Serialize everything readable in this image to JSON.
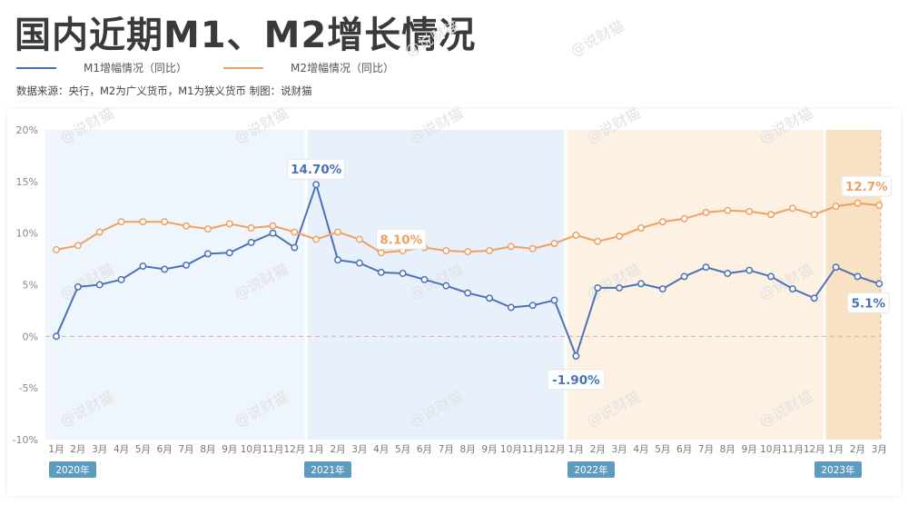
{
  "header": {
    "title": "国内近期M1、M2增长情况",
    "source": "数据来源：央行，M2为广义货币，M1为狭义货币    制图：说财猫"
  },
  "watermark": "@说财猫",
  "colors": {
    "m1": "#4a72b8",
    "m2": "#f0a060",
    "band_2020": "#eef5fd",
    "band_2021": "#e7f0fb",
    "band_2022": "#fdf1e3",
    "band_2023": "#f9e1c4",
    "zero_line": "#e0a8a8",
    "year_badge": "#5d9cc0"
  },
  "chart_data": {
    "type": "line",
    "x": [
      "1月",
      "2月",
      "3月",
      "4月",
      "5月",
      "6月",
      "7月",
      "8月",
      "9月",
      "10月",
      "11月",
      "12月",
      "1月",
      "2月",
      "3月",
      "4月",
      "5月",
      "6月",
      "7月",
      "8月",
      "9月",
      "10月",
      "11月",
      "12月",
      "1月",
      "2月",
      "3月",
      "4月",
      "5月",
      "6月",
      "7月",
      "8月",
      "9月",
      "10月",
      "11月",
      "12月",
      "1月",
      "2月",
      "3月"
    ],
    "years": [
      {
        "label": "2020年",
        "start": 0,
        "end": 11
      },
      {
        "label": "2021年",
        "start": 12,
        "end": 23
      },
      {
        "label": "2022年",
        "start": 24,
        "end": 35
      },
      {
        "label": "2023年",
        "start": 36,
        "end": 38
      }
    ],
    "series": [
      {
        "name": "M1增幅情况（同比）",
        "key": "m1",
        "values": [
          0.0,
          4.8,
          5.0,
          5.5,
          6.8,
          6.5,
          6.9,
          8.0,
          8.1,
          9.1,
          10.0,
          8.6,
          14.7,
          7.4,
          7.1,
          6.2,
          6.1,
          5.5,
          4.9,
          4.2,
          3.7,
          2.8,
          3.0,
          3.5,
          -1.9,
          4.7,
          4.7,
          5.1,
          4.6,
          5.8,
          6.7,
          6.1,
          6.4,
          5.8,
          4.6,
          3.7,
          6.7,
          5.8,
          5.1
        ]
      },
      {
        "name": "M2增幅情况（同比）",
        "key": "m2",
        "values": [
          8.4,
          8.8,
          10.1,
          11.1,
          11.1,
          11.1,
          10.7,
          10.4,
          10.9,
          10.5,
          10.7,
          10.1,
          9.4,
          10.1,
          9.4,
          8.1,
          8.3,
          8.6,
          8.3,
          8.2,
          8.3,
          8.7,
          8.5,
          9.0,
          9.8,
          9.2,
          9.7,
          10.5,
          11.1,
          11.4,
          12.0,
          12.2,
          12.1,
          11.8,
          12.4,
          11.8,
          12.6,
          12.9,
          12.7
        ]
      }
    ],
    "annotations": [
      {
        "text": "14.70%",
        "series": "m1",
        "index": 12
      },
      {
        "text": "8.10%",
        "series": "m2",
        "index": 15
      },
      {
        "text": "-1.90%",
        "series": "m1",
        "index": 24
      },
      {
        "text": "12.7%",
        "series": "m2",
        "index": 38
      },
      {
        "text": "5.1%",
        "series": "m1",
        "index": 38
      }
    ],
    "y_ticks": [
      "20%",
      "15%",
      "10%",
      "5%",
      "0%",
      "-5%",
      "-10%"
    ],
    "ylim": [
      -10,
      20
    ],
    "grid": false
  }
}
